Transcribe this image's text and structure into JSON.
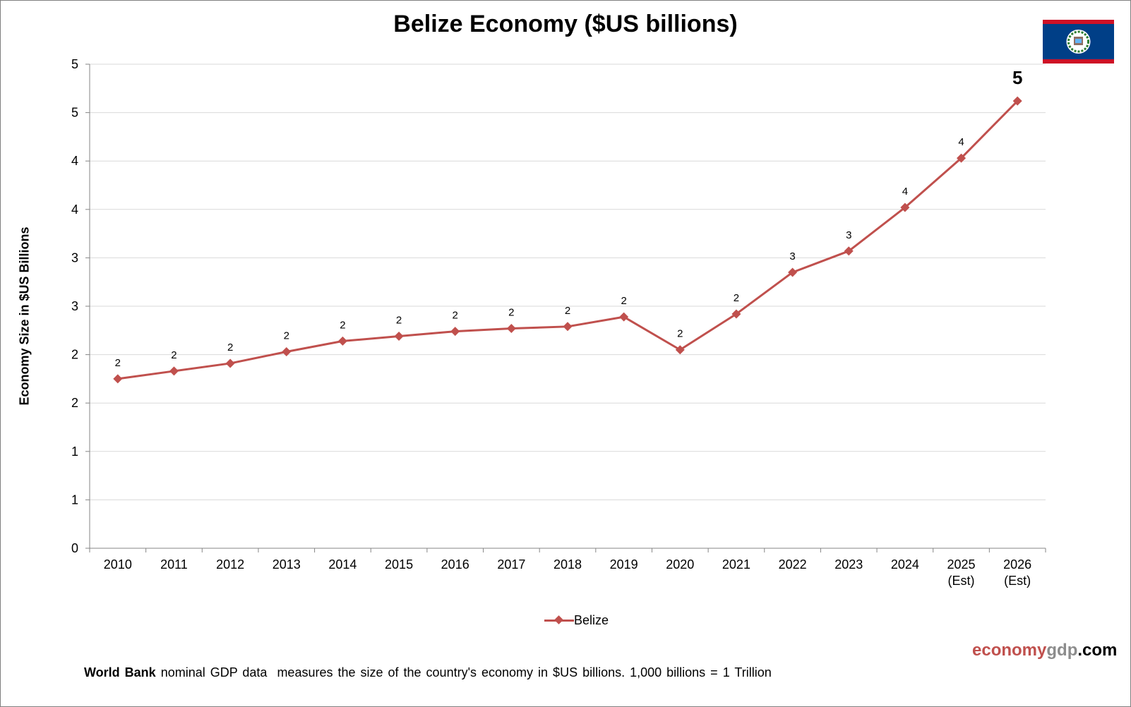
{
  "chart_data": {
    "type": "line",
    "title": "Belize Economy ($US billions)",
    "xlabel": "",
    "ylabel": "Economy Size in $US Billions",
    "ylim": [
      0,
      5
    ],
    "y_ticks": [
      0,
      0.5,
      1,
      1.5,
      2,
      2.5,
      3,
      3.5,
      4,
      4.5,
      5
    ],
    "y_tick_labels": [
      "0",
      "1",
      "1",
      "2",
      "2",
      "3",
      "3",
      "4",
      "4",
      "5",
      "5"
    ],
    "categories": [
      [
        "2010"
      ],
      [
        "2011"
      ],
      [
        "2012"
      ],
      [
        "2013"
      ],
      [
        "2014"
      ],
      [
        "2015"
      ],
      [
        "2016"
      ],
      [
        "2017"
      ],
      [
        "2018"
      ],
      [
        "2019"
      ],
      [
        "2020"
      ],
      [
        "2021"
      ],
      [
        "2022"
      ],
      [
        "2023"
      ],
      [
        "2024"
      ],
      [
        "2025",
        "(Est)"
      ],
      [
        "2026",
        "(Est)"
      ]
    ],
    "series": [
      {
        "name": "Belize",
        "color": "#c0504d",
        "values": [
          1.75,
          1.83,
          1.91,
          2.03,
          2.14,
          2.19,
          2.24,
          2.27,
          2.29,
          2.39,
          2.05,
          2.42,
          2.85,
          3.07,
          3.52,
          4.03,
          4.62
        ],
        "data_labels": [
          "2",
          "2",
          "2",
          "2",
          "2",
          "2",
          "2",
          "2",
          "2",
          "2",
          "2",
          "2",
          "3",
          "3",
          "4",
          "4",
          "5"
        ]
      }
    ],
    "grid": true,
    "legend_position": "bottom"
  },
  "flag": {
    "name": "belize-flag-icon",
    "blue": "#003f87",
    "red": "#ce1126"
  },
  "brand": {
    "part1": "economy",
    "part2": "gdp",
    "part3": ".com"
  },
  "footnote": {
    "bold": "World Bank",
    "text": " nominal GDP data  measures the size of the country's economy in $US billions. 1,000 billions = 1 Trillion"
  }
}
